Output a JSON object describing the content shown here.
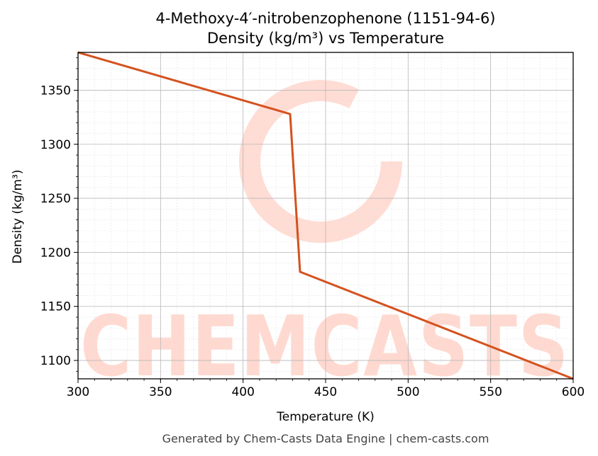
{
  "chart_data": {
    "type": "line",
    "title": "4-Methoxy-4′-nitrobenzophenone (1151-94-6)",
    "subtitle": "Density (kg/m³) vs Temperature",
    "xlabel": "Temperature (K)",
    "ylabel": "Density (kg/m³)",
    "xlim": [
      300,
      600
    ],
    "ylim": [
      1083,
      1385
    ],
    "xticks": [
      300,
      350,
      400,
      450,
      500,
      550,
      600
    ],
    "yticks": [
      1100,
      1150,
      1200,
      1250,
      1300,
      1350
    ],
    "grid": true,
    "series": [
      {
        "color": "#d4521f",
        "x": [
          300,
          428.5,
          434.5,
          600
        ],
        "y": [
          1385,
          1328,
          1182,
          1083
        ]
      }
    ]
  },
  "footer": "Generated by Chem-Casts Data Engine | chem-casts.com",
  "watermark": "CHEMCASTS"
}
